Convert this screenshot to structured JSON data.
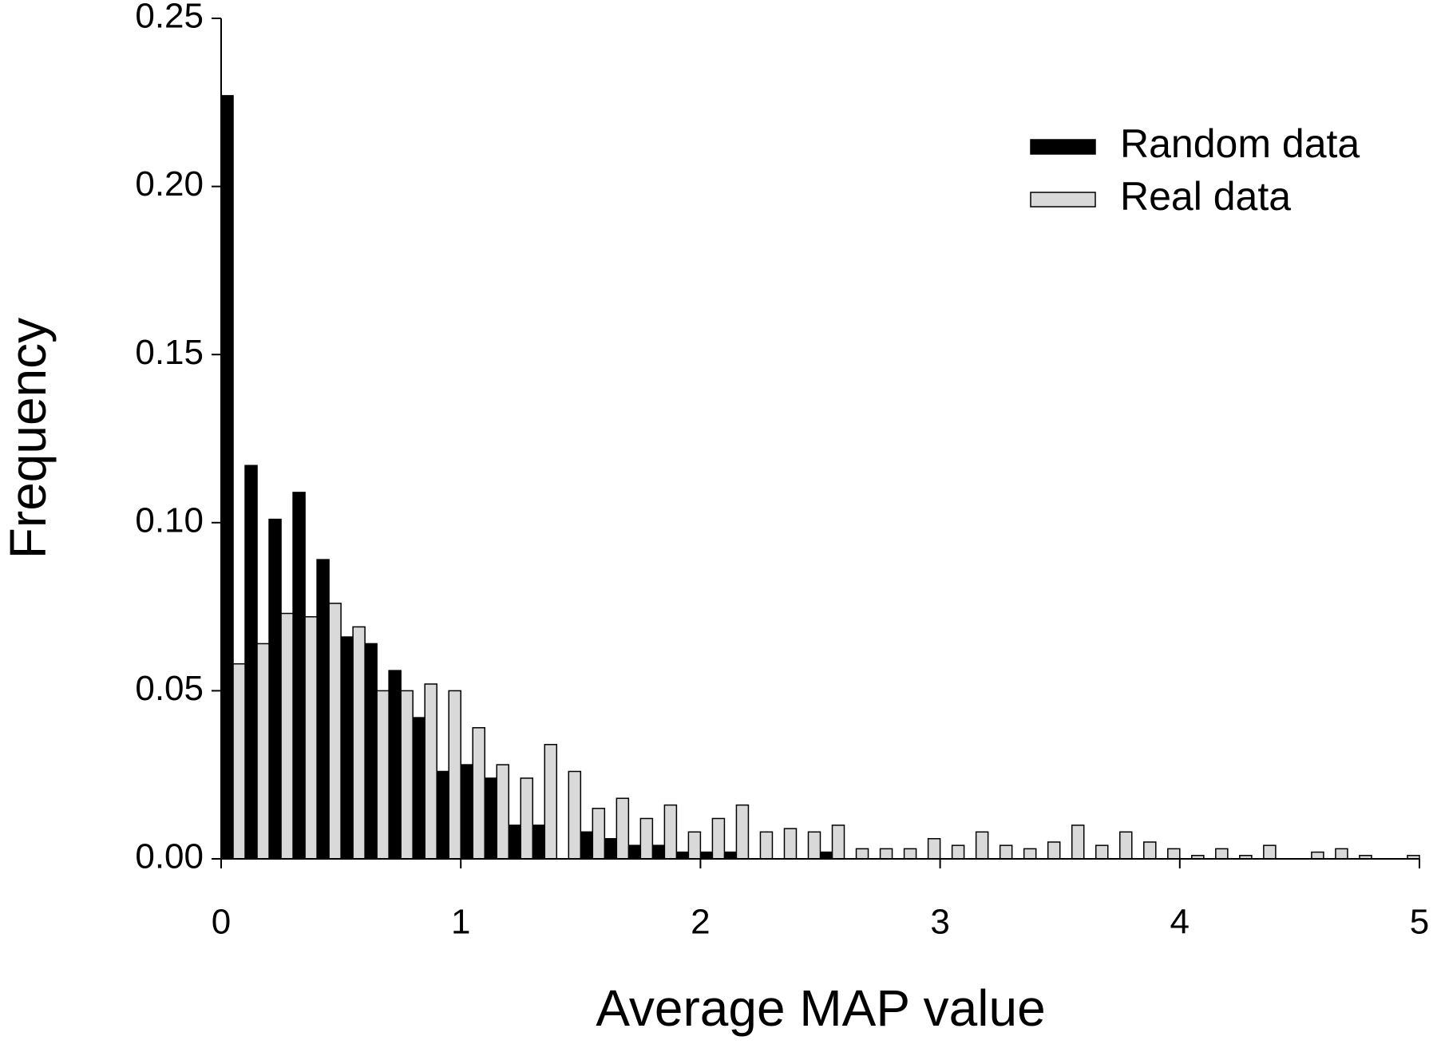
{
  "chart_data": {
    "type": "histogram",
    "x_label": "Average MAP value",
    "y_label": "Frequency",
    "bins": [
      0.0,
      0.1,
      0.2,
      0.3,
      0.4,
      0.5,
      0.6,
      0.7,
      0.8,
      0.9,
      1.0,
      1.1,
      1.2,
      1.3,
      1.4,
      1.5,
      1.6,
      1.7,
      1.8,
      1.9,
      2.0,
      2.1,
      2.2,
      2.3,
      2.4,
      2.5,
      2.6,
      2.7,
      2.8,
      2.9,
      3.0,
      3.1,
      3.2,
      3.3,
      3.4,
      3.5,
      3.6,
      3.7,
      3.8,
      3.9,
      4.0,
      4.1,
      4.2,
      4.3,
      4.4,
      4.5,
      4.6,
      4.7,
      4.8,
      4.9,
      5.0
    ],
    "series": [
      {
        "name": "Random data",
        "color": "#000000",
        "values": [
          0.227,
          0.117,
          0.101,
          0.109,
          0.089,
          0.066,
          0.064,
          0.056,
          0.042,
          0.026,
          0.028,
          0.024,
          0.01,
          0.01,
          0.0,
          0.008,
          0.006,
          0.004,
          0.004,
          0.002,
          0.002,
          0.002,
          0,
          0,
          0,
          0.002,
          0,
          0,
          0,
          0,
          0,
          0,
          0,
          0,
          0,
          0,
          0,
          0,
          0,
          0,
          0,
          0,
          0,
          0,
          0,
          0,
          0,
          0,
          0,
          0
        ]
      },
      {
        "name": "Real data",
        "color": "#d9d9d9",
        "values": [
          0.058,
          0.064,
          0.073,
          0.072,
          0.076,
          0.069,
          0.05,
          0.05,
          0.052,
          0.05,
          0.039,
          0.028,
          0.024,
          0.034,
          0.026,
          0.015,
          0.018,
          0.012,
          0.016,
          0.008,
          0.012,
          0.016,
          0.008,
          0.009,
          0.008,
          0.01,
          0.003,
          0.003,
          0.003,
          0.006,
          0.004,
          0.008,
          0.004,
          0.003,
          0.005,
          0.01,
          0.004,
          0.008,
          0.005,
          0.003,
          0.001,
          0.003,
          0.001,
          0.004,
          0,
          0.002,
          0.003,
          0.001,
          0,
          0.001
        ]
      }
    ],
    "xlim": [
      0,
      5
    ],
    "xticks": [
      0,
      1,
      2,
      3,
      4,
      5
    ],
    "ylim": [
      0,
      0.25
    ],
    "yticks": [
      {
        "value": 0,
        "label": "0.00"
      },
      0.05,
      {
        "value": 0.1,
        "label": "0.10"
      },
      0.15,
      {
        "value": 0.2,
        "label": "0.20"
      },
      0.25
    ],
    "legend": "upper right"
  }
}
